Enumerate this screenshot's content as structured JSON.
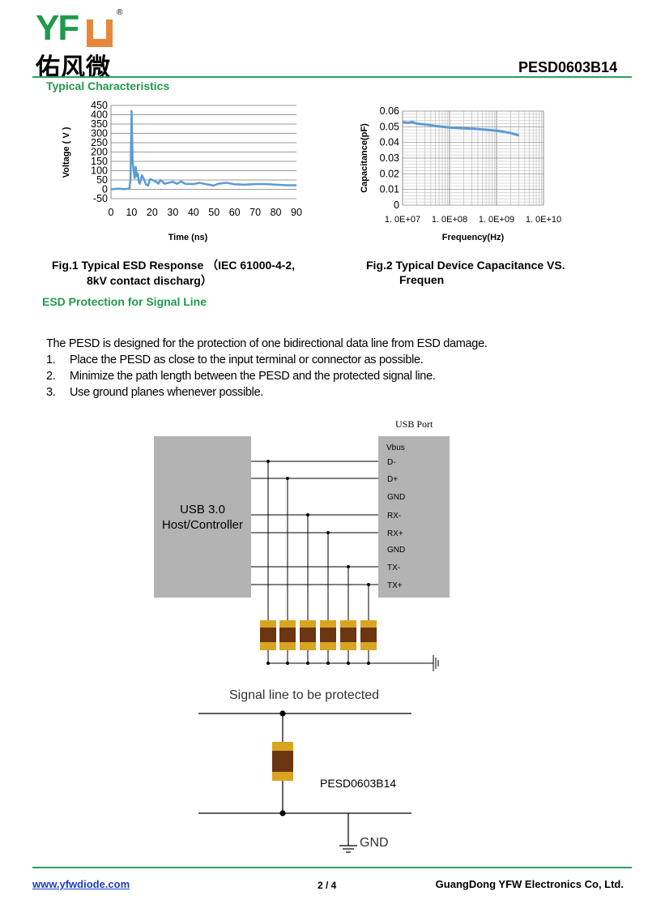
{
  "header": {
    "logo_text": "YFW",
    "logo_chinese": "佑风微",
    "registered_mark": "®",
    "part_number": "PESD0603B14",
    "section_title": "Typical Characteristics",
    "colors": {
      "green": "#1f9a4c",
      "orange": "#e8873a",
      "rule": "#2fa05a"
    }
  },
  "figures": {
    "fig1_caption_line1": "Fig.1 Typical ESD Response （IEC 61000-4-2,",
    "fig1_caption_line2": "8kV contact discharg）",
    "fig2_caption_line1": "Fig.2 Typical Device Capacitance VS.",
    "fig2_caption_line2": "Frequen"
  },
  "chart_data": [
    {
      "type": "line",
      "title": "",
      "xlabel": "Time (ns)",
      "ylabel": "Voltage ( V )",
      "xlim": [
        0,
        90
      ],
      "ylim": [
        -50,
        450
      ],
      "x_ticks": [
        "0",
        "10",
        "20",
        "30",
        "40",
        "50",
        "60",
        "70",
        "80",
        "90"
      ],
      "y_ticks": [
        "450",
        "400",
        "350",
        "300",
        "250",
        "200",
        "150",
        "100",
        "50",
        "0",
        "-50"
      ],
      "grid": "horizontal",
      "line_color": "#5b9bd5",
      "points": [
        [
          0,
          0
        ],
        [
          2,
          2
        ],
        [
          4,
          4
        ],
        [
          6,
          1
        ],
        [
          8,
          3
        ],
        [
          9,
          6
        ],
        [
          9.5,
          60
        ],
        [
          10,
          420
        ],
        [
          10.5,
          150
        ],
        [
          11,
          100
        ],
        [
          11.5,
          60
        ],
        [
          12,
          120
        ],
        [
          12.5,
          70
        ],
        [
          13,
          85
        ],
        [
          13.5,
          40
        ],
        [
          14,
          30
        ],
        [
          15,
          75
        ],
        [
          16,
          55
        ],
        [
          17,
          25
        ],
        [
          18,
          20
        ],
        [
          19,
          55
        ],
        [
          20,
          50
        ],
        [
          22,
          40
        ],
        [
          23,
          30
        ],
        [
          24,
          50
        ],
        [
          26,
          30
        ],
        [
          28,
          35
        ],
        [
          30,
          40
        ],
        [
          32,
          30
        ],
        [
          34,
          42
        ],
        [
          36,
          30
        ],
        [
          40,
          28
        ],
        [
          43,
          35
        ],
        [
          46,
          28
        ],
        [
          50,
          20
        ],
        [
          52,
          30
        ],
        [
          56,
          35
        ],
        [
          60,
          27
        ],
        [
          65,
          25
        ],
        [
          70,
          28
        ],
        [
          75,
          28
        ],
        [
          80,
          25
        ],
        [
          85,
          22
        ],
        [
          90,
          22
        ]
      ]
    },
    {
      "type": "line",
      "title": "",
      "xlabel": "Frequency(Hz)",
      "ylabel": "Capacitance(pF)",
      "x_scale": "log",
      "xlim": [
        10000000.0,
        10000000000.0
      ],
      "ylim": [
        0,
        0.06
      ],
      "x_ticks": [
        "1. 0E+07",
        "1. 0E+08",
        "1. 0E+09",
        "1. 0E+10"
      ],
      "y_ticks": [
        "0.06",
        "0.05",
        "0.04",
        "0.03",
        "0.02",
        "0.01",
        "0"
      ],
      "grid": "both",
      "line_color": "#5b9bd5",
      "points": [
        [
          10000000.0,
          0.053
        ],
        [
          13000000.0,
          0.0525
        ],
        [
          16000000.0,
          0.053
        ],
        [
          20000000.0,
          0.052
        ],
        [
          30000000.0,
          0.0515
        ],
        [
          50000000.0,
          0.0505
        ],
        [
          100000000.0,
          0.0495
        ],
        [
          200000000.0,
          0.049
        ],
        [
          300000000.0,
          0.0488
        ],
        [
          500000000.0,
          0.0483
        ],
        [
          1000000000.0,
          0.0475
        ],
        [
          2000000000.0,
          0.046
        ],
        [
          3000000000.0,
          0.0445
        ]
      ]
    }
  ],
  "esd_section": {
    "title": "ESD Protection for Signal Line",
    "intro": "The PESD is designed for the protection of one bidirectional data line from ESD damage.",
    "items": [
      {
        "num": "1.",
        "text": "Place the PESD as close to the input terminal or connector as possible."
      },
      {
        "num": "2.",
        "text": "Minimize the path length between the PESD and the protected signal line."
      },
      {
        "num": "3.",
        "text": "Use ground planes whenever possible."
      }
    ]
  },
  "usb_diagram": {
    "port_title": "USB Port",
    "host_line1": "USB 3.0",
    "host_line2": "Host/Controller",
    "pins": [
      "Vbus",
      "D-",
      "D+",
      "GND",
      "RX-",
      "RX+",
      "GND",
      "TX-",
      "TX+"
    ],
    "colors": {
      "box": "#b3b3b3",
      "pad": "#d9a520",
      "body": "#6b3510"
    }
  },
  "signal_diagram": {
    "title": "Signal line to be protected",
    "device": "PESD0603B14",
    "gnd": "GND"
  },
  "footer": {
    "website": "www.yfwdiode.com",
    "page": "2 / 4",
    "company": "GuangDong YFW Electronics Co, Ltd."
  }
}
